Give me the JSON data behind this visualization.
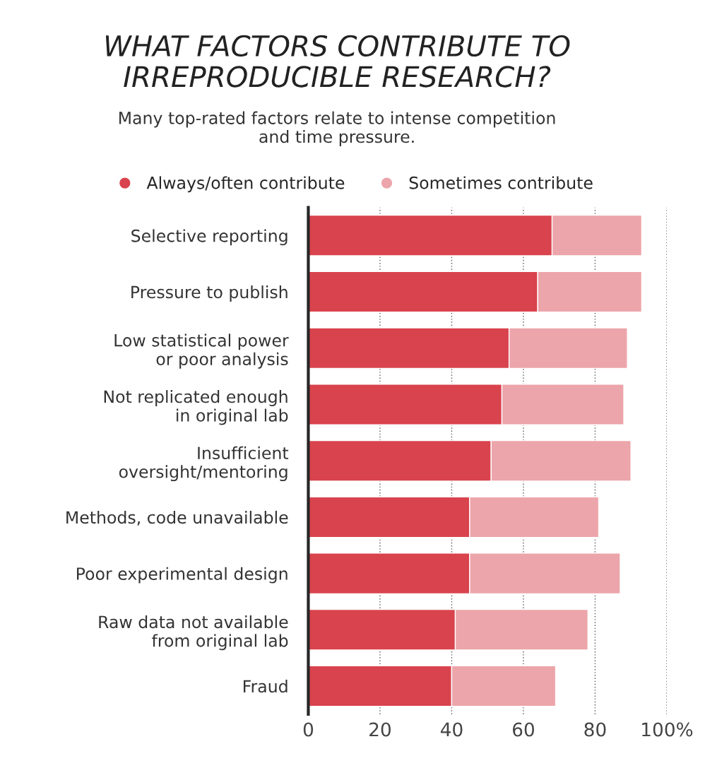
{
  "chart_data": {
    "type": "bar",
    "orientation": "horizontal",
    "stacked": true,
    "title": "WHAT FACTORS CONTRIBUTE TO\nIRREPRODUCIBLE RESEARCH?",
    "subtitle": "Many top-rated factors relate to intense competition\nand time pressure.",
    "categories": [
      "Selective reporting",
      "Pressure to publish",
      "Low statistical power\nor poor analysis",
      "Not replicated enough\nin original lab",
      "Insufficient\noversight/mentoring",
      "Methods, code unavailable",
      "Poor experimental design",
      "Raw data not available\nfrom original lab",
      "Fraud"
    ],
    "series": [
      {
        "name": "Always/often contribute",
        "color": "#d9434d",
        "values": [
          68,
          64,
          56,
          54,
          51,
          45,
          45,
          41,
          40
        ]
      },
      {
        "name": "Sometimes contribute",
        "color": "#eca5aa",
        "values": [
          25,
          29,
          33,
          34,
          39,
          36,
          42,
          37,
          29
        ]
      }
    ],
    "xlim": [
      0,
      100
    ],
    "xticks": [
      0,
      20,
      40,
      60,
      80,
      {
        "value": 100,
        "label": "100%"
      }
    ],
    "grid": "x",
    "legend": "top left",
    "marker": "circle"
  }
}
